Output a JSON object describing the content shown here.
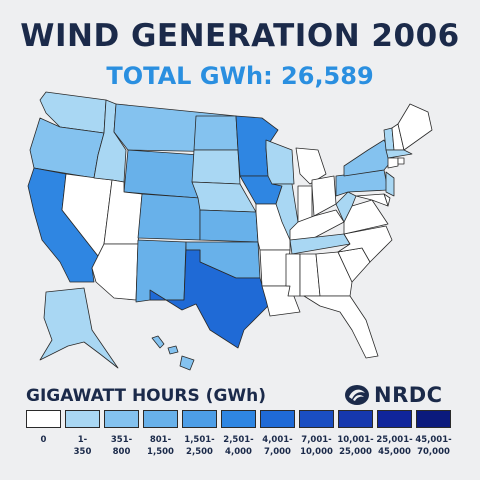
{
  "title": "WIND GENERATION 2006",
  "subtitle": "TOTAL GWh: 26,589",
  "legend": {
    "title": "GIGAWATT HOURS (GWh)",
    "bins": [
      {
        "low": "0",
        "high": "",
        "color": "#ffffff"
      },
      {
        "low": "1-",
        "high": "350",
        "color": "#a9d7f3"
      },
      {
        "low": "351-",
        "high": "800",
        "color": "#84c2ef"
      },
      {
        "low": "801-",
        "high": "1,500",
        "color": "#68b1ea"
      },
      {
        "low": "1,501-",
        "high": "2,500",
        "color": "#4d9ee7"
      },
      {
        "low": "2,501-",
        "high": "4,000",
        "color": "#2f86e2"
      },
      {
        "low": "4,001-",
        "high": "7,000",
        "color": "#1f6ad6"
      },
      {
        "low": "7,001-",
        "high": "10,000",
        "color": "#1a4ec2"
      },
      {
        "low": "10,001-",
        "high": "25,000",
        "color": "#1638ae"
      },
      {
        "low": "25,001-",
        "high": "45,000",
        "color": "#10259b"
      },
      {
        "low": "45,001-",
        "high": "70,000",
        "color": "#0b1a7d"
      }
    ]
  },
  "logo": {
    "text": "NRDC",
    "icon": "nrdc-globe-icon"
  },
  "map_data": {
    "variable": "wind_generation_gwh_bin",
    "states": {
      "WA": 1,
      "OR": 2,
      "CA": 5,
      "NV": 0,
      "ID": 1,
      "MT": 2,
      "WY": 3,
      "UT": 0,
      "AZ": 0,
      "CO": 3,
      "NM": 3,
      "ND": 2,
      "SD": 1,
      "NE": 1,
      "KS": 3,
      "OK": 3,
      "TX": 6,
      "MN": 5,
      "IA": 5,
      "MO": 0,
      "AR": 0,
      "LA": 0,
      "WI": 1,
      "IL": 1,
      "MI": 0,
      "IN": 0,
      "OH": 0,
      "KY": 0,
      "TN": 1,
      "MS": 0,
      "AL": 0,
      "GA": 0,
      "FL": 0,
      "SC": 0,
      "NC": 0,
      "VA": 0,
      "WV": 1,
      "PA": 2,
      "NY": 2,
      "NJ": 1,
      "DE": 0,
      "MD": 0,
      "VT": 1,
      "NH": 0,
      "ME": 0,
      "MA": 1,
      "CT": 0,
      "RI": 0,
      "AK": 1,
      "HI": 2
    }
  }
}
